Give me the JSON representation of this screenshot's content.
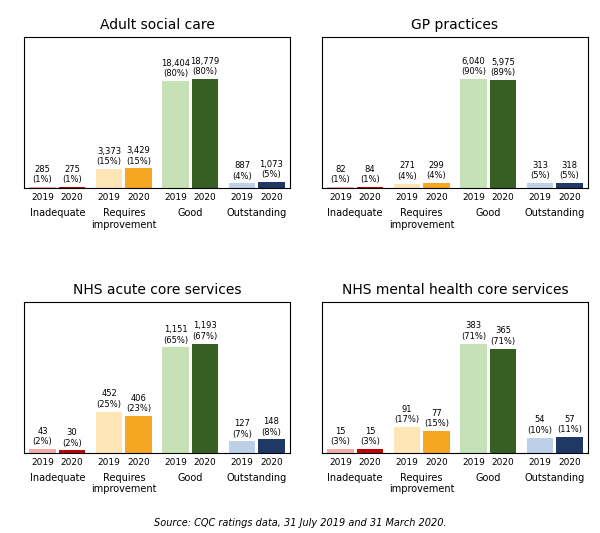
{
  "chart_data": [
    {
      "type": "bar",
      "title": "Adult social care",
      "categories": [
        "Inadequate",
        "Requires\nimprovement",
        "Good",
        "Outstanding"
      ],
      "series": [
        {
          "name": "2019",
          "colors": [
            "#f5aaaa",
            "#fde5b5",
            "#c6e1b5",
            "#bdd0e8"
          ],
          "values": [
            285,
            3373,
            18404,
            887
          ],
          "value_labels": [
            "285\n(1%)",
            "3,373\n(15%)",
            "18,404\n(80%)",
            "887\n(4%)"
          ]
        },
        {
          "name": "2020",
          "colors": [
            "#c00000",
            "#f5a623",
            "#375e23",
            "#1f3864"
          ],
          "values": [
            275,
            3429,
            18779,
            1073
          ],
          "value_labels": [
            "275\n(1%)",
            "3,429\n(15%)",
            "18,779\n(80%)",
            "1,073\n(5%)"
          ]
        }
      ],
      "ylim": [
        0,
        25915.02
      ],
      "data_labels": true,
      "tick_labels": "x",
      "grid": false
    },
    {
      "type": "bar",
      "title": "GP practices",
      "categories": [
        "Inadequate",
        "Requires\nimprovement",
        "Good",
        "Outstanding"
      ],
      "series": [
        {
          "name": "2019",
          "colors": [
            "#f5aaaa",
            "#fde5b5",
            "#c6e1b5",
            "#bdd0e8"
          ],
          "values": [
            82,
            271,
            6040,
            313
          ],
          "value_labels": [
            "82\n(1%)",
            "271\n(4%)",
            "6,040\n(90%)",
            "313\n(5%)"
          ]
        },
        {
          "name": "2020",
          "colors": [
            "#c00000",
            "#f5a623",
            "#375e23",
            "#1f3864"
          ],
          "values": [
            84,
            299,
            5975,
            318
          ],
          "value_labels": [
            "84\n(1%)",
            "299\n(4%)",
            "5,975\n(89%)",
            "318\n(5%)"
          ]
        }
      ],
      "ylim": [
        0,
        8335.2
      ],
      "data_labels": true,
      "tick_labels": "x",
      "grid": false
    },
    {
      "type": "bar",
      "title": "NHS acute core services",
      "categories": [
        "Inadequate",
        "Requires\nimprovement",
        "Good",
        "Outstanding"
      ],
      "series": [
        {
          "name": "2019",
          "colors": [
            "#f5aaaa",
            "#fde5b5",
            "#c6e1b5",
            "#bdd0e8"
          ],
          "values": [
            43,
            452,
            1151,
            127
          ],
          "value_labels": [
            "43\n(2%)",
            "452\n(25%)",
            "1,151\n(65%)",
            "127\n(7%)"
          ]
        },
        {
          "name": "2020",
          "colors": [
            "#c00000",
            "#f5a623",
            "#375e23",
            "#1f3864"
          ],
          "values": [
            30,
            406,
            1193,
            148
          ],
          "value_labels": [
            "30\n(2%)",
            "406\n(23%)",
            "1,193\n(67%)",
            "148\n(8%)"
          ]
        }
      ],
      "ylim": [
        0,
        1646.34
      ],
      "data_labels": true,
      "tick_labels": "x",
      "grid": false
    },
    {
      "type": "bar",
      "title": "NHS mental health core services",
      "categories": [
        "Inadequate",
        "Requires\nimprovement",
        "Good",
        "Outstanding"
      ],
      "series": [
        {
          "name": "2019",
          "colors": [
            "#f5aaaa",
            "#fde5b5",
            "#c6e1b5",
            "#bdd0e8"
          ],
          "values": [
            15,
            91,
            383,
            54
          ],
          "value_labels": [
            "15\n(3%)",
            "91\n(17%)",
            "383\n(71%)",
            "54\n(10%)"
          ]
        },
        {
          "name": "2020",
          "colors": [
            "#c00000",
            "#f5a623",
            "#375e23",
            "#1f3864"
          ],
          "values": [
            15,
            77,
            365,
            57
          ],
          "value_labels": [
            "15\n(3%)",
            "77\n(15%)",
            "365\n(71%)",
            "57\n(11%)"
          ]
        }
      ],
      "ylim": [
        0,
        528.54
      ],
      "data_labels": true,
      "tick_labels": "x",
      "grid": false
    }
  ],
  "source": "Source: CQC ratings data, 31 July 2019 and 31 March 2020."
}
